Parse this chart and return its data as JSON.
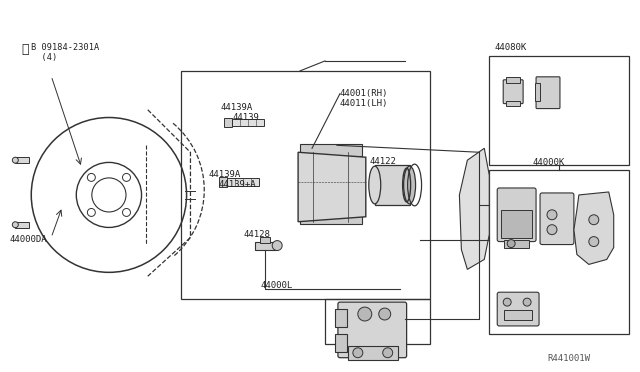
{
  "background_color": "#ffffff",
  "line_color": "#333333",
  "text_color": "#222222",
  "fig_width": 6.4,
  "fig_height": 3.72,
  "dpi": 100,
  "watermark": "R441001W",
  "parts": {
    "bolt_circle_1": "B 09184-2301A",
    "bolt_circle_2": "  (4)",
    "rotor_label": "44000DA",
    "caliper_assy_rh": "44001(RH)",
    "caliper_assy_lh": "44011(LH)",
    "slide_pin_upper_a": "44139A",
    "slide_pin": "44139",
    "slide_pin_lower_a": "44139A",
    "slide_pin_plus": "44139+A",
    "piston": "44122",
    "bleeder": "44128",
    "caliper_sub": "44000L",
    "pad_kit": "44080K",
    "pad_label": "44000K"
  }
}
